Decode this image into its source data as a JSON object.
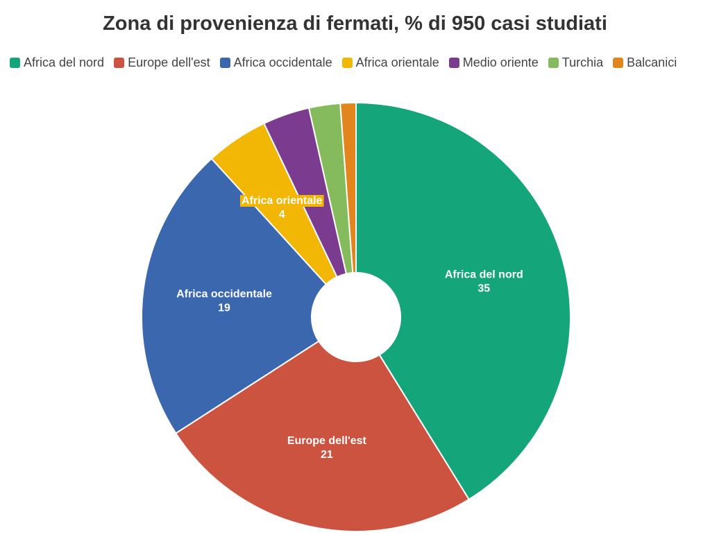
{
  "chart_data": {
    "type": "pie",
    "title": "Zona di provenienza di fermati, % di 950 casi studiati",
    "categories": [
      "Africa del nord",
      "Europe dell'est",
      "Africa occidentale",
      "Africa orientale",
      "Medio oriente",
      "Turchia",
      "Balcanici"
    ],
    "values": [
      35,
      21,
      19,
      4,
      3,
      2,
      1
    ],
    "colors": [
      "#14a67a",
      "#cc5340",
      "#3a67ad",
      "#f2b705",
      "#7b3b8e",
      "#85bb5c",
      "#e2851d"
    ],
    "data_labels_shown": [
      "Africa del nord",
      "Europe dell'est",
      "Africa occidentale",
      "Africa orientale"
    ],
    "legend_position": "top-left",
    "donut": true
  }
}
